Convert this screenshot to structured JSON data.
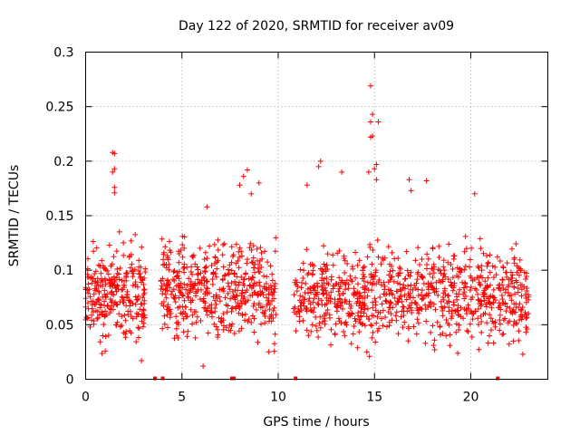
{
  "chart_data": {
    "type": "scatter",
    "title": "Day 122 of 2020, SRMTID for receiver av09",
    "xlabel": "GPS time / hours",
    "ylabel": "SRMTID / TECUs",
    "xlim": [
      0,
      24
    ],
    "ylim": [
      0,
      0.3
    ],
    "x_ticks": [
      0,
      5,
      10,
      15,
      20
    ],
    "x_tick_labels": [
      "0",
      "5",
      "10",
      "15",
      "20"
    ],
    "y_ticks": [
      0,
      0.05,
      0.1,
      0.15,
      0.2,
      0.25,
      0.3
    ],
    "y_tick_labels": [
      "0",
      "0.05",
      "0.1",
      "0.15",
      "0.2",
      "0.25",
      "0.3"
    ],
    "grid": true,
    "marker": "plus",
    "color": "#ff0000",
    "series": [
      {
        "name": "SRMTID",
        "segments": [
          {
            "x": [
              0.0,
              3.1
            ],
            "y_mean": 0.08,
            "y_spread": 0.06,
            "count": 280
          },
          {
            "x": [
              3.9,
              9.9
            ],
            "y_mean": 0.082,
            "y_spread": 0.065,
            "count": 480
          },
          {
            "x": [
              10.8,
              23.0
            ],
            "y_mean": 0.078,
            "y_spread": 0.06,
            "count": 900
          }
        ],
        "outliers": [
          {
            "x": 1.4,
            "y": 0.208
          },
          {
            "x": 1.5,
            "y": 0.207
          },
          {
            "x": 1.5,
            "y": 0.193
          },
          {
            "x": 1.4,
            "y": 0.19
          },
          {
            "x": 1.5,
            "y": 0.176
          },
          {
            "x": 1.5,
            "y": 0.171
          },
          {
            "x": 8.4,
            "y": 0.192
          },
          {
            "x": 8.2,
            "y": 0.186
          },
          {
            "x": 8.0,
            "y": 0.178
          },
          {
            "x": 8.6,
            "y": 0.17
          },
          {
            "x": 9.0,
            "y": 0.18
          },
          {
            "x": 14.8,
            "y": 0.269
          },
          {
            "x": 14.9,
            "y": 0.243
          },
          {
            "x": 14.8,
            "y": 0.236
          },
          {
            "x": 15.2,
            "y": 0.236
          },
          {
            "x": 14.9,
            "y": 0.223
          },
          {
            "x": 14.8,
            "y": 0.222
          },
          {
            "x": 15.1,
            "y": 0.197
          },
          {
            "x": 15.0,
            "y": 0.193
          },
          {
            "x": 14.7,
            "y": 0.19
          },
          {
            "x": 15.1,
            "y": 0.183
          },
          {
            "x": 12.2,
            "y": 0.2
          },
          {
            "x": 13.3,
            "y": 0.19
          },
          {
            "x": 17.7,
            "y": 0.182
          },
          {
            "x": 16.8,
            "y": 0.183
          },
          {
            "x": 16.9,
            "y": 0.173
          },
          {
            "x": 12.1,
            "y": 0.195
          },
          {
            "x": 20.2,
            "y": 0.17
          },
          {
            "x": 11.5,
            "y": 0.178
          },
          {
            "x": 6.3,
            "y": 0.158
          },
          {
            "x": 2.9,
            "y": 0.017
          },
          {
            "x": 6.1,
            "y": 0.012
          },
          {
            "x": 22.7,
            "y": 0.023
          },
          {
            "x": 14.6,
            "y": 0.025
          }
        ]
      }
    ],
    "gap_markers_x": [
      3.6,
      4.0,
      7.6,
      7.7,
      10.9,
      21.4
    ]
  }
}
